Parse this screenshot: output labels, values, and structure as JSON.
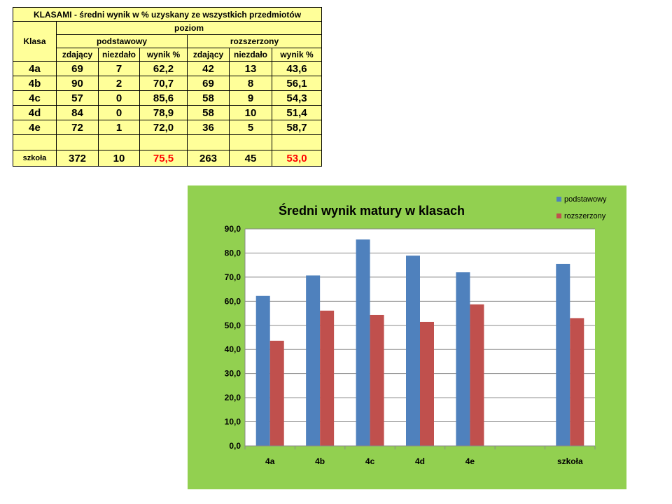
{
  "table": {
    "title": "KLASAMI  - średni wynik w % uzyskany  ze  wszystkich  przedmiotów",
    "klasa_header": "Klasa",
    "poziom_header": "poziom",
    "levels": [
      "podstawowy",
      "rozszerzony"
    ],
    "subheaders": [
      "zdający",
      "niezdało",
      "wynik %",
      "zdający",
      "niezdało",
      "wynik %"
    ],
    "rows": [
      {
        "klasa": "4a",
        "cells": [
          "69",
          "7",
          "62,2",
          "42",
          "13",
          "43,6"
        ]
      },
      {
        "klasa": "4b",
        "cells": [
          "90",
          "2",
          "70,7",
          "69",
          "8",
          "56,1"
        ]
      },
      {
        "klasa": "4c",
        "cells": [
          "57",
          "0",
          "85,6",
          "58",
          "9",
          "54,3"
        ]
      },
      {
        "klasa": "4d",
        "cells": [
          "84",
          "0",
          "78,9",
          "58",
          "10",
          "51,4"
        ]
      },
      {
        "klasa": "4e",
        "cells": [
          "72",
          "1",
          "72,0",
          "36",
          "5",
          "58,7"
        ]
      }
    ],
    "school": {
      "klasa": "szkoła",
      "cells": [
        "372",
        "10",
        "75,5",
        "263",
        "45",
        "53,0"
      ]
    }
  },
  "chart_data": {
    "type": "bar",
    "title": "Średni wynik matury w klasach",
    "categories": [
      "4a",
      "4b",
      "4c",
      "4d",
      "4e",
      "",
      "szkoła"
    ],
    "series": [
      {
        "name": "podstawowy",
        "color": "#4f81bd",
        "values": [
          62.2,
          70.7,
          85.6,
          78.9,
          72.0,
          null,
          75.5
        ]
      },
      {
        "name": "rozszerzony",
        "color": "#c0504d",
        "values": [
          43.6,
          56.1,
          54.3,
          51.4,
          58.7,
          null,
          53.0
        ]
      }
    ],
    "ylim": [
      0,
      90
    ],
    "yticks": [
      "0,0",
      "10,0",
      "20,0",
      "30,0",
      "40,0",
      "50,0",
      "60,0",
      "70,0",
      "80,0",
      "90,0"
    ],
    "grid": true,
    "legend_position": "top-right",
    "background_color": "#92d050",
    "plot_background_color": "#ffffff"
  }
}
